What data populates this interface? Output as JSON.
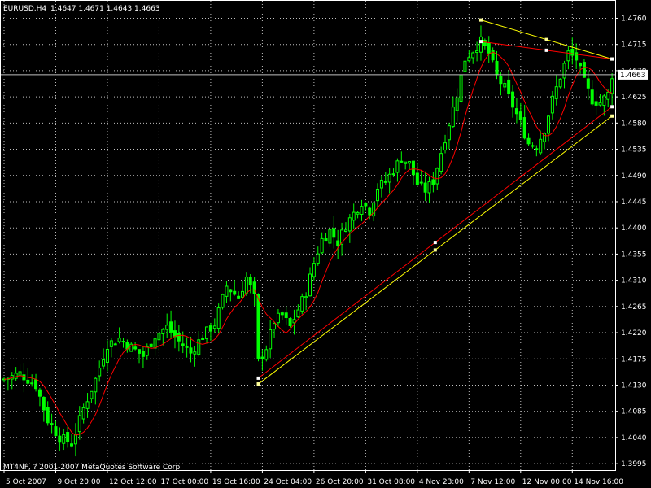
{
  "header": {
    "symbol": "EURUSD,H4",
    "ohlc": "1.4647 1.4671 1.4643 1.4663"
  },
  "footer": {
    "copyright": "MT4NF, ? 2001-2007 MetaQuotes Software Corp."
  },
  "colors": {
    "background": "#000000",
    "grid": "#c0c0c0",
    "candle": "#00ff00",
    "moving_average": "#ff0000",
    "trendline_yellow": "#ffff00",
    "trendline_red": "#ff0000",
    "axis_text": "#ffffff",
    "bid_line": "#c0c0c0"
  },
  "chart_data": {
    "type": "candlestick",
    "symbol": "EURUSD",
    "timeframe": "H4",
    "ylim": [
      1.3984,
      1.479
    ],
    "price_ticks": [
      "1.4760",
      "1.4715",
      "1.4670",
      "1.4625",
      "1.4580",
      "1.4535",
      "1.4490",
      "1.4445",
      "1.4400",
      "1.4355",
      "1.4310",
      "1.4265",
      "1.4220",
      "1.4175",
      "1.4130",
      "1.4085",
      "1.4040",
      "1.3995"
    ],
    "time_ticks": [
      "5 Oct 2007",
      "9 Oct 20:00",
      "12 Oct 12:00",
      "17 Oct 00:00",
      "19 Oct 16:00",
      "24 Oct 04:00",
      "26 Oct 20:00",
      "31 Oct 08:00",
      "4 Nov 23:00",
      "7 Nov 12:00",
      "12 Nov 00:00",
      "14 Nov 16:00"
    ],
    "current_price": "1.4663",
    "close_path": [
      [
        0,
        1.414
      ],
      [
        4,
        1.415
      ],
      [
        8,
        1.413
      ],
      [
        11,
        1.407
      ],
      [
        14,
        1.404
      ],
      [
        17,
        1.403
      ],
      [
        20,
        1.409
      ],
      [
        23,
        1.414
      ],
      [
        26,
        1.42
      ],
      [
        29,
        1.421
      ],
      [
        32,
        1.4195
      ],
      [
        35,
        1.418
      ],
      [
        38,
        1.4215
      ],
      [
        41,
        1.423
      ],
      [
        44,
        1.4205
      ],
      [
        47,
        1.4185
      ],
      [
        50,
        1.4215
      ],
      [
        53,
        1.4235
      ],
      [
        56,
        1.43
      ],
      [
        59,
        1.428
      ],
      [
        61,
        1.4315
      ],
      [
        63,
        1.428
      ],
      [
        64,
        1.417
      ],
      [
        66,
        1.4195
      ],
      [
        68,
        1.424
      ],
      [
        70,
        1.425
      ],
      [
        72,
        1.423
      ],
      [
        74,
        1.426
      ],
      [
        76,
        1.429
      ],
      [
        78,
        1.434
      ],
      [
        80,
        1.438
      ],
      [
        82,
        1.4395
      ],
      [
        84,
        1.4375
      ],
      [
        86,
        1.4405
      ],
      [
        88,
        1.4425
      ],
      [
        90,
        1.4445
      ],
      [
        92,
        1.443
      ],
      [
        94,
        1.447
      ],
      [
        96,
        1.448
      ],
      [
        98,
        1.45
      ],
      [
        100,
        1.452
      ],
      [
        102,
        1.451
      ],
      [
        104,
        1.4475
      ],
      [
        106,
        1.4465
      ],
      [
        108,
        1.448
      ],
      [
        110,
        1.453
      ],
      [
        112,
        1.458
      ],
      [
        114,
        1.463
      ],
      [
        116,
        1.469
      ],
      [
        118,
        1.4705
      ],
      [
        120,
        1.472
      ],
      [
        122,
        1.47
      ],
      [
        124,
        1.466
      ],
      [
        126,
        1.464
      ],
      [
        128,
        1.461
      ],
      [
        130,
        1.458
      ],
      [
        132,
        1.4545
      ],
      [
        134,
        1.454
      ],
      [
        136,
        1.457
      ],
      [
        138,
        1.462
      ],
      [
        140,
        1.466
      ],
      [
        142,
        1.47
      ],
      [
        144,
        1.469
      ],
      [
        146,
        1.465
      ],
      [
        148,
        1.462
      ],
      [
        150,
        1.4615
      ],
      [
        152,
        1.463
      ],
      [
        153,
        1.4663
      ]
    ],
    "trendlines": [
      {
        "name": "yellow-support",
        "color": "yellow",
        "from": [
          64,
          1.4132
        ],
        "to": [
          153,
          1.4592
        ]
      },
      {
        "name": "red-channel",
        "color": "red",
        "from": [
          64,
          1.4142
        ],
        "to": [
          153,
          1.4608
        ]
      },
      {
        "name": "yellow-upper",
        "color": "yellow",
        "from": [
          120,
          1.4757
        ],
        "to": [
          153,
          1.469
        ]
      },
      {
        "name": "red-upper",
        "color": "red",
        "from": [
          120,
          1.472
        ],
        "to": [
          153,
          1.469
        ]
      }
    ],
    "grid": true
  }
}
